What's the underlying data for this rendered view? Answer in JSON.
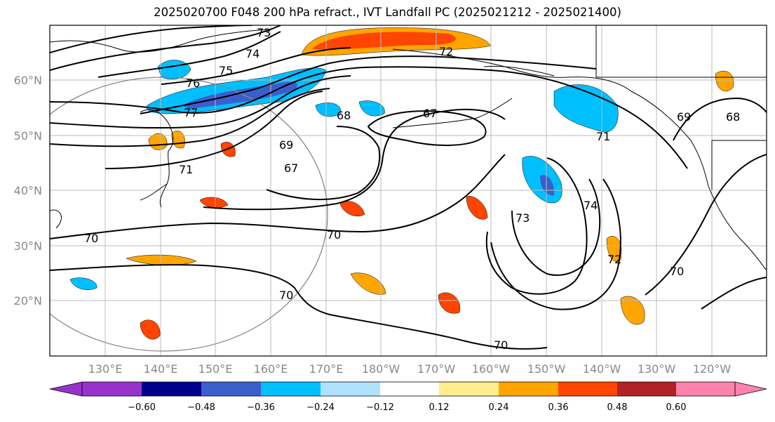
{
  "title": "2025020700 F048 200 hPa refract., IVT Landfall PC (2025021212 - 2025021400)",
  "map": {
    "lon_labels": [
      "130°E",
      "140°E",
      "150°E",
      "160°E",
      "170°E",
      "180°W",
      "170°W",
      "160°W",
      "150°W",
      "140°W",
      "130°W",
      "120°W"
    ],
    "lat_labels": [
      "60°N",
      "50°N",
      "40°N",
      "30°N",
      "20°N"
    ],
    "contour_labels": [
      "73",
      "74",
      "75",
      "76",
      "77",
      "72",
      "68",
      "67",
      "71",
      "69",
      "67",
      "71",
      "70",
      "70",
      "73",
      "74",
      "72",
      "70",
      "70",
      "69",
      "68",
      "70"
    ],
    "shading_colors": {
      "neg_strong": "#9932cc",
      "neg_navy": "#00008b",
      "neg_blue": "#3a5fcd",
      "neg_sky": "#00bfff",
      "neg_light": "#b0e2ff",
      "pos_yellow": "#ffec8b",
      "pos_orange": "#ffa500",
      "pos_red": "#ff4500",
      "pos_dark": "#b22222",
      "pos_pink": "#ff82ab"
    }
  },
  "colorbar": {
    "tick_labels": [
      "−0.60",
      "−0.48",
      "−0.36",
      "−0.24",
      "−0.12",
      "0.12",
      "0.24",
      "0.36",
      "0.48",
      "0.60"
    ],
    "colors": [
      "#9932cc",
      "#00008b",
      "#3a5fcd",
      "#00bfff",
      "#b0e2ff",
      "#ffffff",
      "#ffec8b",
      "#ffa500",
      "#ff4500",
      "#b22222",
      "#ff82ab"
    ]
  }
}
